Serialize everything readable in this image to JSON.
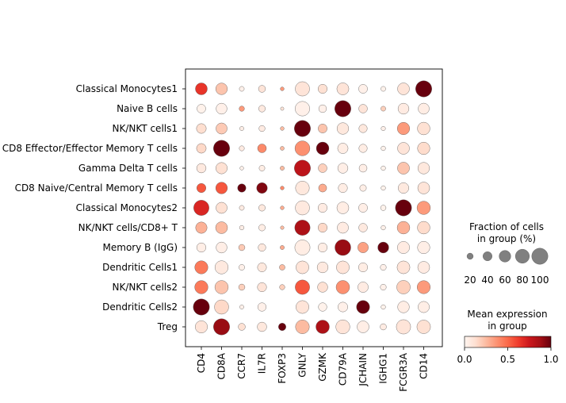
{
  "chart_data": {
    "type": "dotplot",
    "title": "",
    "xlabel": "",
    "ylabel": "",
    "genes": [
      "CD4",
      "CD8A",
      "CCR7",
      "IL7R",
      "FOXP3",
      "GNLY",
      "GZMK",
      "CD79A",
      "JCHAIN",
      "IGHG1",
      "FCGR3A",
      "CD14"
    ],
    "groups": [
      "Classical Monocytes1",
      "Naive B cells",
      "NK/NKT cells1",
      "CD8 Effector/Effector Memory T cells",
      "Gamma Delta T cells",
      "CD8 Naive/Central Memory T cells",
      "Classical Monocytes2",
      "NK/NKT cells/CD8+ T",
      "Memory B (IgG)",
      "Dendritic Cells1",
      "NK/NKT cells2",
      "Dendritic Cells2",
      "Treg"
    ],
    "fraction_pct": [
      [
        62,
        60,
        12,
        25,
        6,
        83,
        40,
        63,
        38,
        12,
        62,
        100
      ],
      [
        37,
        54,
        14,
        23,
        4,
        85,
        30,
        100,
        36,
        12,
        54,
        55
      ],
      [
        45,
        56,
        8,
        19,
        6,
        100,
        39,
        60,
        34,
        9,
        66,
        68
      ],
      [
        44,
        100,
        13,
        37,
        7,
        88,
        68,
        50,
        34,
        10,
        62,
        66
      ],
      [
        42,
        58,
        6,
        17,
        8,
        100,
        37,
        48,
        31,
        10,
        63,
        60
      ],
      [
        40,
        60,
        34,
        52,
        6,
        78,
        32,
        40,
        22,
        10,
        52,
        62
      ],
      [
        92,
        56,
        12,
        22,
        6,
        82,
        40,
        62,
        38,
        15,
        100,
        74
      ],
      [
        58,
        62,
        10,
        22,
        5,
        92,
        40,
        56,
        36,
        10,
        68,
        68
      ],
      [
        41,
        54,
        20,
        29,
        8,
        91,
        40,
        97,
        51,
        54,
        64,
        66
      ],
      [
        72,
        73,
        17,
        39,
        16,
        70,
        54,
        70,
        40,
        18,
        70,
        62
      ],
      [
        73,
        74,
        20,
        40,
        14,
        84,
        48,
        75,
        50,
        18,
        76,
        72
      ],
      [
        100,
        82,
        8,
        35,
        0,
        71,
        35,
        45,
        72,
        10,
        60,
        57
      ],
      [
        65,
        100,
        25,
        42,
        28,
        78,
        75,
        80,
        62,
        20,
        83,
        76
      ]
    ],
    "mean_expression": [
      [
        0.65,
        0.22,
        0.03,
        0.1,
        0.35,
        0.1,
        0.12,
        0.1,
        0.03,
        0.02,
        0.1,
        1.0
      ],
      [
        0.02,
        0.03,
        0.35,
        0.07,
        0.1,
        0.03,
        0.03,
        1.0,
        0.1,
        0.18,
        0.06,
        0.05
      ],
      [
        0.13,
        0.2,
        0.04,
        0.06,
        0.25,
        1.0,
        0.22,
        0.08,
        0.08,
        0.03,
        0.35,
        0.12
      ],
      [
        0.15,
        1.0,
        0.06,
        0.4,
        0.25,
        0.38,
        1.0,
        0.05,
        0.05,
        0.02,
        0.1,
        0.14
      ],
      [
        0.07,
        0.12,
        0.03,
        0.05,
        0.25,
        0.8,
        0.18,
        0.04,
        0.04,
        0.02,
        0.22,
        0.08
      ],
      [
        0.55,
        0.55,
        1.0,
        0.95,
        0.4,
        0.08,
        0.3,
        0.05,
        0.04,
        0.02,
        0.07,
        0.1
      ],
      [
        0.7,
        0.12,
        0.06,
        0.08,
        0.3,
        0.07,
        0.06,
        0.05,
        0.04,
        0.02,
        1.0,
        0.35
      ],
      [
        0.28,
        0.25,
        0.04,
        0.05,
        0.25,
        0.85,
        0.15,
        0.06,
        0.07,
        0.03,
        0.28,
        0.14
      ],
      [
        0.04,
        0.04,
        0.2,
        0.08,
        0.3,
        0.05,
        0.05,
        0.9,
        0.33,
        1.0,
        0.06,
        0.04
      ],
      [
        0.45,
        0.07,
        0.03,
        0.08,
        0.25,
        0.1,
        0.07,
        0.1,
        0.05,
        0.03,
        0.1,
        0.06
      ],
      [
        0.45,
        0.22,
        0.18,
        0.1,
        0.18,
        0.55,
        0.12,
        0.38,
        0.06,
        0.03,
        0.18,
        0.35
      ],
      [
        1.0,
        0.15,
        0.03,
        0.03,
        0.0,
        0.1,
        0.02,
        0.03,
        1.0,
        0.02,
        0.05,
        0.04
      ],
      [
        0.1,
        0.9,
        0.12,
        0.08,
        1.0,
        0.25,
        0.85,
        0.1,
        0.04,
        0.06,
        0.1,
        0.12
      ]
    ],
    "size_legend": {
      "title": "Fraction of cells\nin group (%)",
      "values": [
        20,
        40,
        60,
        80,
        100
      ]
    },
    "color_legend": {
      "title": "Mean expression\nin group",
      "ticks": [
        0.0,
        0.5,
        1.0
      ],
      "tick_labels": [
        "0.0",
        "0.5",
        "1.0"
      ],
      "colormap": "Reds",
      "range": [
        0,
        1
      ]
    },
    "grid": false
  }
}
